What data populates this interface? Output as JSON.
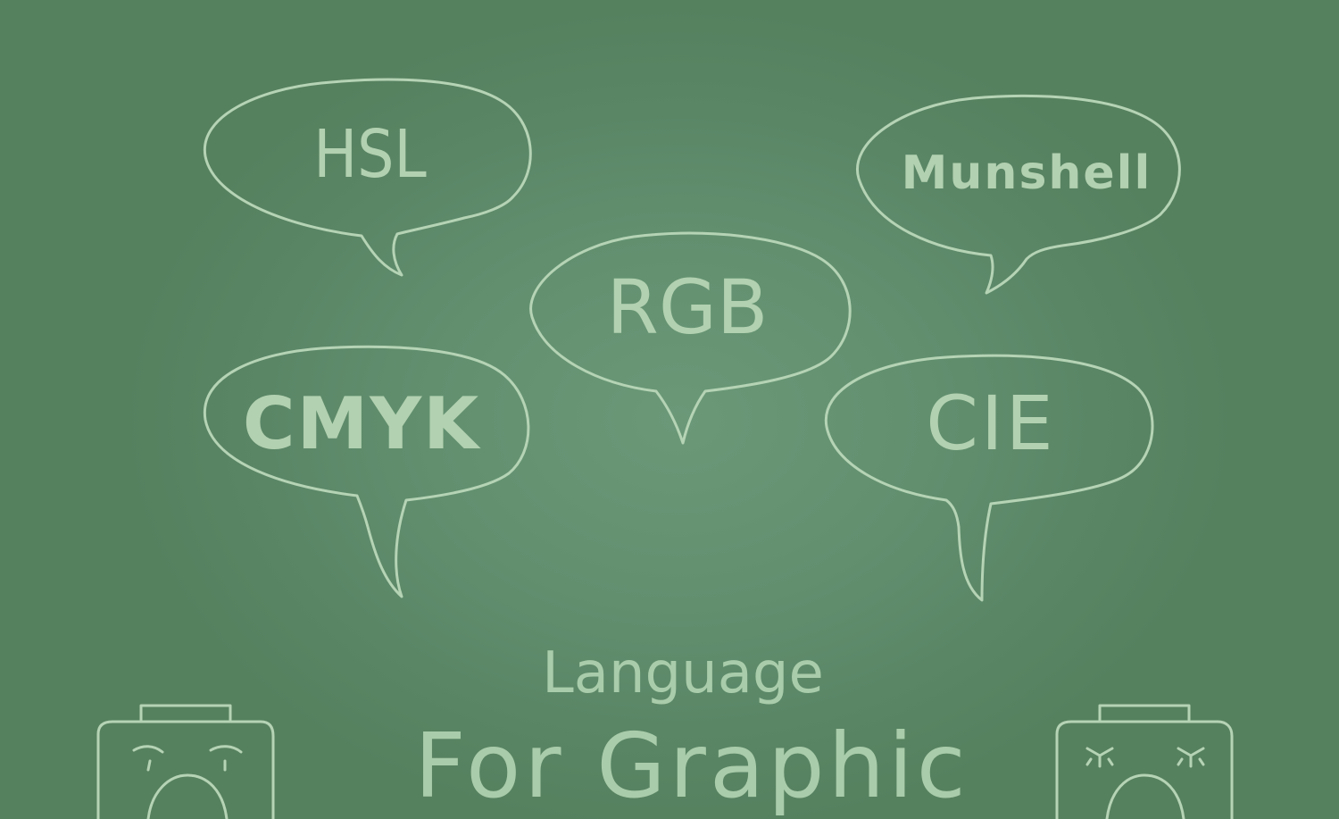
{
  "colors": {
    "board_center": "#6b9978",
    "board_edge": "#56815f",
    "chalk": "#b5d3b5"
  },
  "bubbles": [
    {
      "label": "HSL"
    },
    {
      "label": "Munshell"
    },
    {
      "label": "RGB"
    },
    {
      "label": "CMYK"
    },
    {
      "label": "CIE"
    }
  ],
  "title": {
    "line1": "Language",
    "line2": "For Graphic"
  },
  "characters": [
    {
      "icon": "worried-camera-face-icon"
    },
    {
      "icon": "crying-camera-face-icon"
    }
  ]
}
